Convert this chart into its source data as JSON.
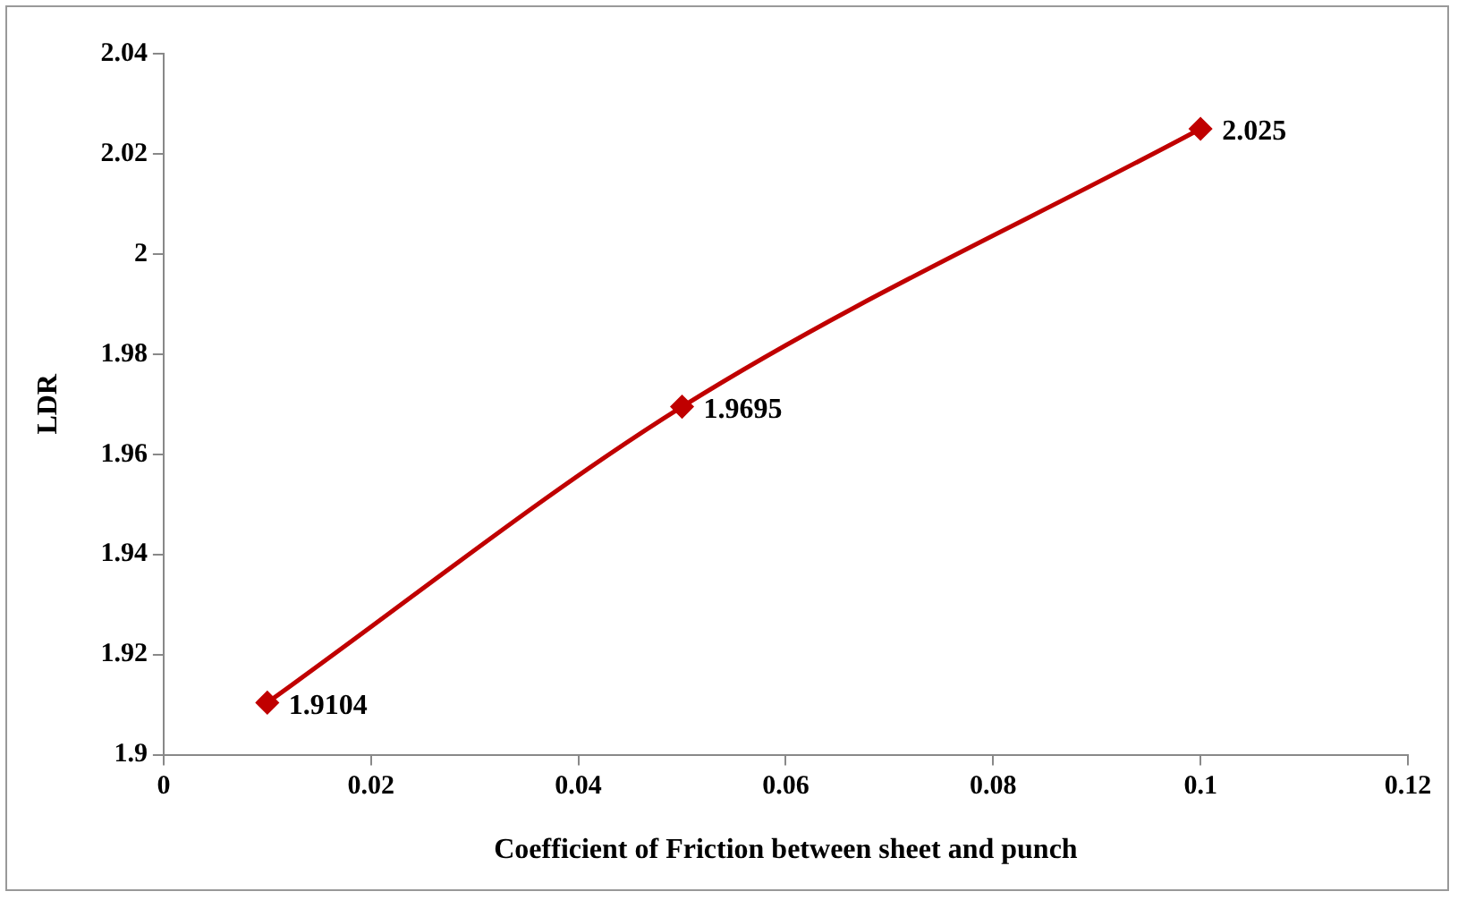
{
  "chart_data": {
    "type": "line",
    "xlabel": "Coefficient of Friction between sheet and punch",
    "ylabel": "LDR",
    "x": [
      0.01,
      0.05,
      0.1
    ],
    "series": [
      {
        "color": "#c00000",
        "values": [
          1.9104,
          1.9695,
          2.025
        ]
      }
    ],
    "xlim": [
      0,
      0.12
    ],
    "xticks": [
      0,
      0.02,
      0.04,
      0.06,
      0.08,
      0.1,
      0.12
    ],
    "ylim": [
      1.9,
      2.04
    ],
    "yticks": [
      1.9,
      1.92,
      1.94,
      1.96,
      1.98,
      2,
      2.02,
      2.04
    ],
    "grid": false,
    "legend": false,
    "marker": "diamond",
    "line_style": "solid",
    "data_labels": true
  }
}
